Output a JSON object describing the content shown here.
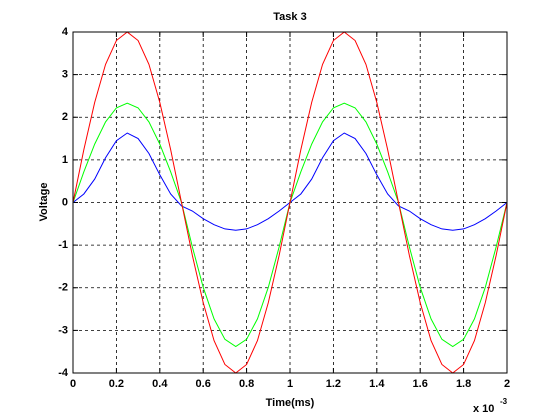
{
  "chart_data": {
    "type": "line",
    "title": "Task 3",
    "x_label": "Time(ms)",
    "y_label": "Voltage",
    "x_multiplier": "x 10",
    "x_multiplier_exp": "-3",
    "x": [
      0,
      0.05,
      0.1,
      0.15,
      0.2,
      0.25,
      0.3,
      0.35,
      0.4,
      0.45,
      0.5,
      0.55,
      0.6,
      0.65,
      0.7,
      0.75,
      0.8,
      0.85,
      0.9,
      0.95,
      1,
      1.05,
      1.1,
      1.15,
      1.2,
      1.25,
      1.3,
      1.35,
      1.4,
      1.45,
      1.5,
      1.55,
      1.6,
      1.65,
      1.7,
      1.75,
      1.8,
      1.85,
      1.9,
      1.95,
      2
    ],
    "series": [
      {
        "color": "#0000ff",
        "values": [
          0,
          0.2,
          0.55,
          1.05,
          1.45,
          1.63,
          1.5,
          1.15,
          0.65,
          0.2,
          -0.08,
          -0.2,
          -0.38,
          -0.52,
          -0.62,
          -0.65,
          -0.62,
          -0.52,
          -0.38,
          -0.2,
          0,
          0.2,
          0.55,
          1.05,
          1.45,
          1.63,
          1.5,
          1.15,
          0.65,
          0.2,
          -0.08,
          -0.2,
          -0.38,
          -0.52,
          -0.62,
          -0.65,
          -0.62,
          -0.52,
          -0.38,
          -0.2,
          0
        ]
      },
      {
        "color": "#00ff00",
        "values": [
          0,
          0.72,
          1.37,
          1.89,
          2.22,
          2.33,
          2.22,
          1.89,
          1.37,
          0.72,
          0,
          -1.04,
          -1.99,
          -2.73,
          -3.21,
          -3.38,
          -3.21,
          -2.73,
          -1.99,
          -1.04,
          0,
          0.72,
          1.37,
          1.89,
          2.22,
          2.33,
          2.22,
          1.89,
          1.37,
          0.72,
          0,
          -1.04,
          -1.99,
          -2.73,
          -3.21,
          -3.38,
          -3.21,
          -2.73,
          -1.99,
          -1.04,
          0
        ]
      },
      {
        "color": "#ff0000",
        "values": [
          0,
          1.24,
          2.35,
          3.24,
          3.8,
          4,
          3.8,
          3.24,
          2.35,
          1.24,
          0,
          -1.24,
          -2.35,
          -3.24,
          -3.8,
          -4,
          -3.8,
          -3.24,
          -2.35,
          -1.24,
          0,
          1.24,
          2.35,
          3.24,
          3.8,
          4,
          3.8,
          3.24,
          2.35,
          1.24,
          0,
          -1.24,
          -2.35,
          -3.24,
          -3.8,
          -4,
          -3.8,
          -3.24,
          -2.35,
          -1.24,
          0
        ]
      }
    ],
    "xlim": [
      0,
      2
    ],
    "xticks": [
      0,
      0.2,
      0.4,
      0.6,
      0.8,
      1,
      1.2,
      1.4,
      1.6,
      1.8,
      2
    ],
    "ylim": [
      -4,
      4
    ],
    "yticks": [
      -4,
      -3,
      -2,
      -1,
      0,
      1,
      2,
      3,
      4
    ],
    "grid": true
  }
}
